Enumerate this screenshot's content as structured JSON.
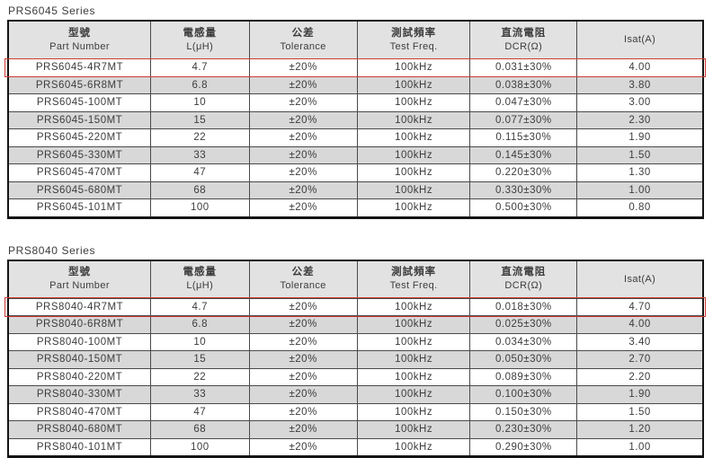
{
  "colors": {
    "highlight_border": "#cf3a32",
    "header_bg": "#e2e2e2",
    "row_bg": "#ffffff",
    "row_alt_bg": "#d8d8d8",
    "frame_border": "#141414",
    "grid_line": "#4a4a4a",
    "text": "#3c3c3c"
  },
  "tables": [
    {
      "title": "PRS6045 Series",
      "columns": [
        {
          "zh": "型號",
          "en": "Part Number"
        },
        {
          "zh": "電感量",
          "en": "L(μH)"
        },
        {
          "zh": "公差",
          "en": "Tolerance"
        },
        {
          "zh": "測試頻率",
          "en": "Test Freq."
        },
        {
          "zh": "直流電阻",
          "en": "DCR(Ω)"
        },
        {
          "zh": "",
          "en": "Isat(A)"
        }
      ],
      "highlighted_row": 0,
      "rows": [
        [
          "PRS6045-4R7MT",
          "4.7",
          "±20%",
          "100kHz",
          "0.031±30%",
          "4.00"
        ],
        [
          "PRS6045-6R8MT",
          "6.8",
          "±20%",
          "100kHz",
          "0.038±30%",
          "3.80"
        ],
        [
          "PRS6045-100MT",
          "10",
          "±20%",
          "100kHz",
          "0.047±30%",
          "3.00"
        ],
        [
          "PRS6045-150MT",
          "15",
          "±20%",
          "100kHz",
          "0.077±30%",
          "2.30"
        ],
        [
          "PRS6045-220MT",
          "22",
          "±20%",
          "100kHz",
          "0.115±30%",
          "1.90"
        ],
        [
          "PRS6045-330MT",
          "33",
          "±20%",
          "100kHz",
          "0.145±30%",
          "1.50"
        ],
        [
          "PRS6045-470MT",
          "47",
          "±20%",
          "100kHz",
          "0.220±30%",
          "1.30"
        ],
        [
          "PRS6045-680MT",
          "68",
          "±20%",
          "100kHz",
          "0.330±30%",
          "1.00"
        ],
        [
          "PRS6045-101MT",
          "100",
          "±20%",
          "100kHz",
          "0.500±30%",
          "0.80"
        ]
      ]
    },
    {
      "title": "PRS8040 Series",
      "columns": [
        {
          "zh": "型號",
          "en": "Part Number"
        },
        {
          "zh": "電感量",
          "en": "L(μH)"
        },
        {
          "zh": "公差",
          "en": "Tolerance"
        },
        {
          "zh": "測試頻率",
          "en": "Test Freq."
        },
        {
          "zh": "直流電阻",
          "en": "DCR(Ω)"
        },
        {
          "zh": "",
          "en": "Isat(A)"
        }
      ],
      "highlighted_row": 0,
      "rows": [
        [
          "PRS8040-4R7MT",
          "4.7",
          "±20%",
          "100kHz",
          "0.018±30%",
          "4.70"
        ],
        [
          "PRS8040-6R8MT",
          "6.8",
          "±20%",
          "100kHz",
          "0.025±30%",
          "4.00"
        ],
        [
          "PRS8040-100MT",
          "10",
          "±20%",
          "100kHz",
          "0.034±30%",
          "3.40"
        ],
        [
          "PRS8040-150MT",
          "15",
          "±20%",
          "100kHz",
          "0.050±30%",
          "2.70"
        ],
        [
          "PRS8040-220MT",
          "22",
          "±20%",
          "100kHz",
          "0.089±30%",
          "2.20"
        ],
        [
          "PRS8040-330MT",
          "33",
          "±20%",
          "100kHz",
          "0.100±30%",
          "1.90"
        ],
        [
          "PRS8040-470MT",
          "47",
          "±20%",
          "100kHz",
          "0.150±30%",
          "1.50"
        ],
        [
          "PRS8040-680MT",
          "68",
          "±20%",
          "100kHz",
          "0.230±30%",
          "1.20"
        ],
        [
          "PRS8040-101MT",
          "100",
          "±20%",
          "100kHz",
          "0.290±30%",
          "1.00"
        ]
      ]
    }
  ]
}
